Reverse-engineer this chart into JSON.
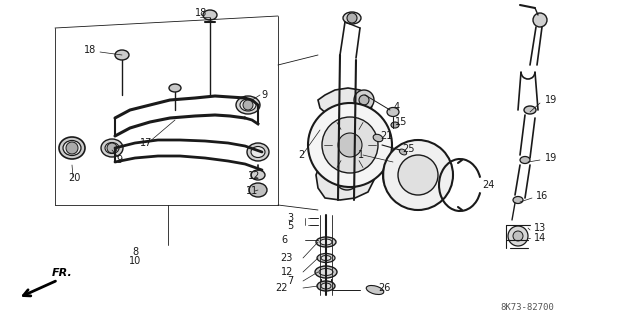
{
  "bg_color": "#ffffff",
  "line_color": "#1a1a1a",
  "diagram_code": "8K73-82700",
  "fig_width": 6.4,
  "fig_height": 3.19,
  "dpi": 100
}
